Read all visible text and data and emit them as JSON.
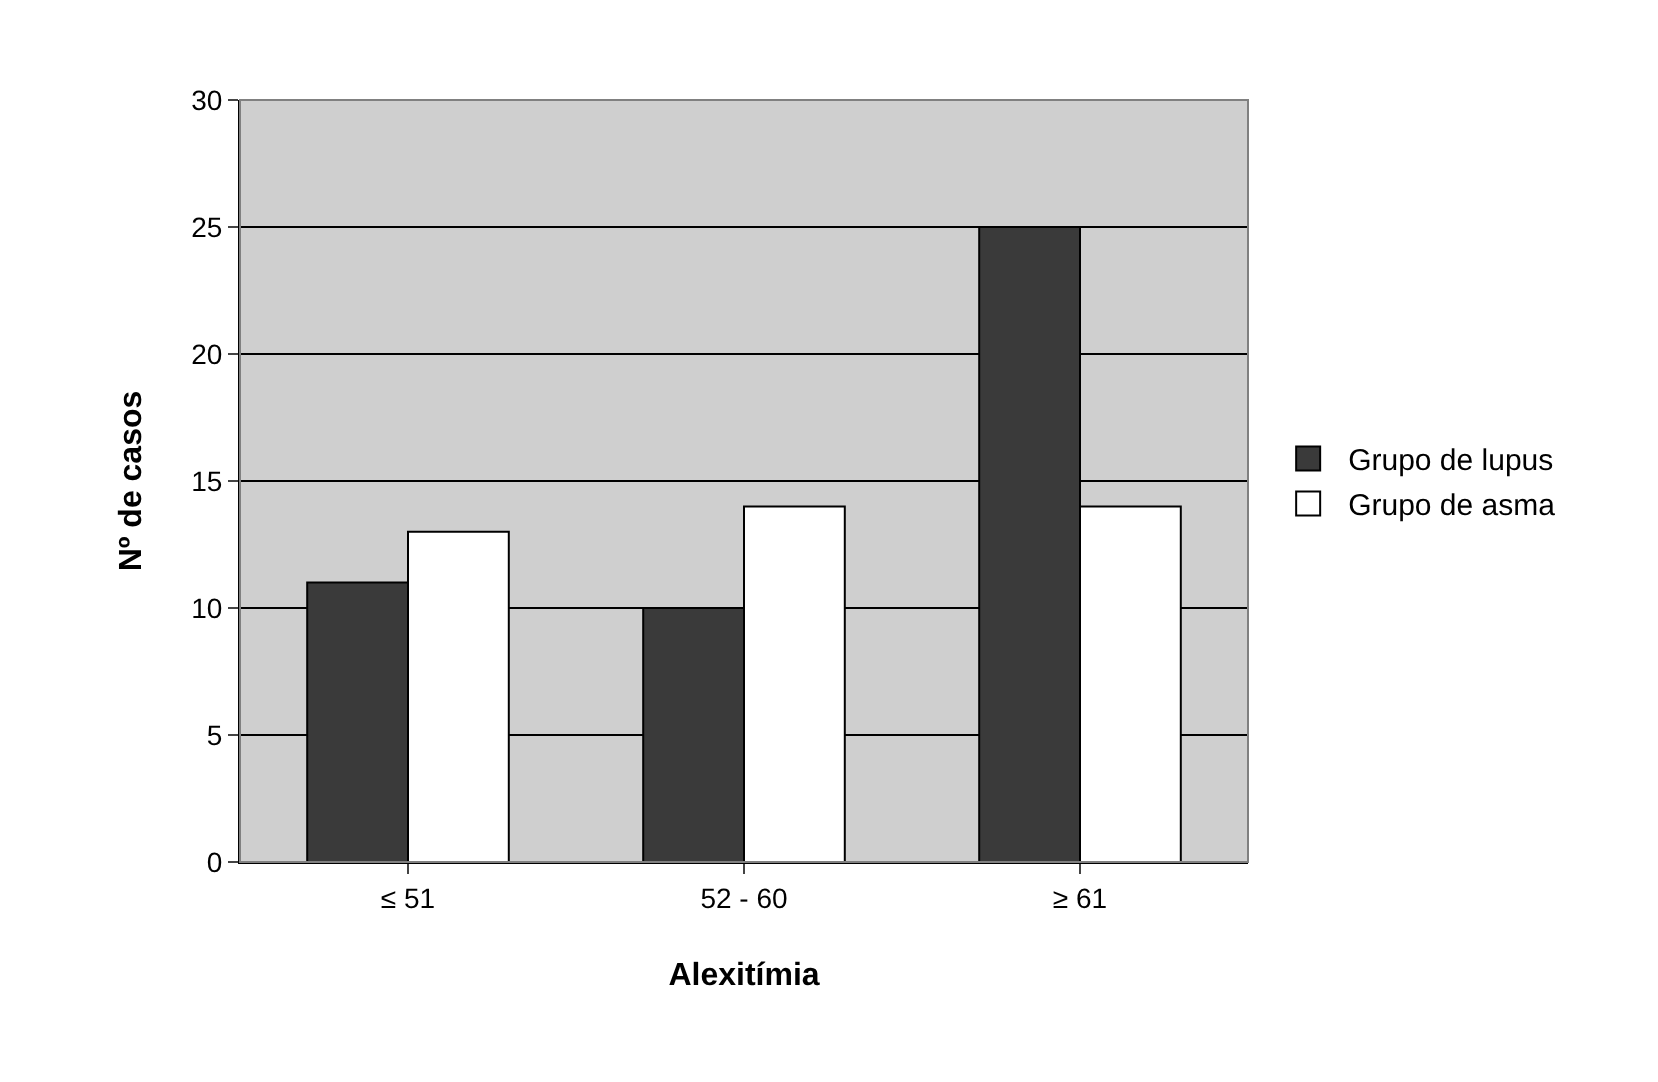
{
  "chart_data": {
    "type": "bar",
    "xlabel": "Alexitímia",
    "ylabel": "Nº de casos",
    "categories": [
      "≤ 51",
      "52 - 60",
      "≥ 61"
    ],
    "series": [
      {
        "name": "Grupo de lupus",
        "color": "#3a3a3a",
        "values": [
          11,
          10,
          25
        ]
      },
      {
        "name": "Grupo de asma",
        "color": "#ffffff",
        "values": [
          13,
          14,
          14
        ]
      }
    ],
    "ylim": [
      0,
      30
    ],
    "yticks": [
      0,
      5,
      10,
      15,
      20,
      25,
      30
    ],
    "grid": "y",
    "legend": "right"
  }
}
